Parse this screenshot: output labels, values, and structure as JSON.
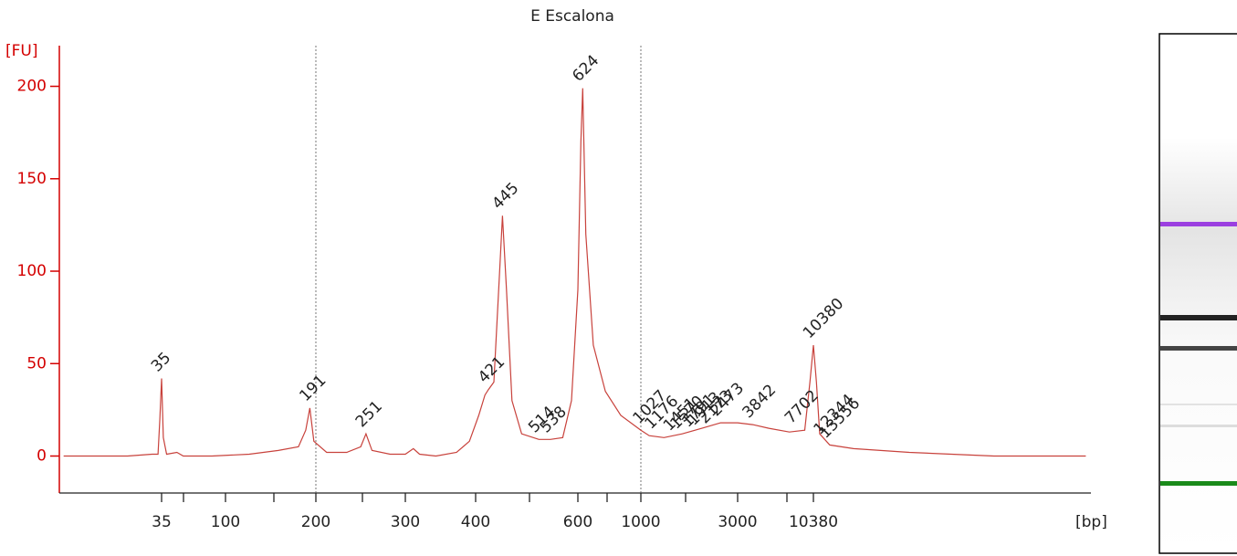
{
  "chart_data": {
    "type": "line",
    "title": "E Escalona",
    "y_label": "[FU]",
    "x_label": "[bp]",
    "axis_color": "#d40000",
    "log_scale": true,
    "ylim": [
      -20,
      222
    ],
    "yticks": [
      0,
      50,
      100,
      150,
      200
    ],
    "xticks": [
      35,
      100,
      200,
      300,
      400,
      600,
      1000,
      3000,
      10380
    ],
    "vlines": [
      200,
      1000
    ],
    "series": [
      {
        "name": "E Escalona",
        "color": "#c8423c",
        "x": [
          7,
          20,
          30,
          33,
          34,
          35,
          36,
          38,
          45,
          50,
          80,
          120,
          150,
          175,
          185,
          191,
          197,
          210,
          230,
          245,
          251,
          258,
          280,
          300,
          310,
          318,
          340,
          370,
          390,
          405,
          415,
          421,
          430,
          440,
          445,
          452,
          462,
          480,
          514,
          538,
          565,
          585,
          600,
          615,
          624,
          640,
          680,
          750,
          850,
          1000,
          1100,
          1300,
          1600,
          2000,
          2473,
          3000,
          3842,
          5000,
          7000,
          9000,
          9800,
          10380,
          10900,
          11500,
          13556,
          20000,
          50000,
          200000,
          900000
        ],
        "values": [
          0,
          0,
          1,
          1,
          20,
          42,
          10,
          1,
          2,
          0,
          0,
          1,
          3,
          5,
          14,
          26,
          8,
          2,
          2,
          5,
          12,
          3,
          1,
          1,
          4,
          1,
          0,
          2,
          8,
          22,
          33,
          36,
          40,
          100,
          130,
          90,
          30,
          12,
          9,
          9,
          10,
          30,
          90,
          170,
          199,
          120,
          60,
          35,
          22,
          14,
          11,
          10,
          12,
          15,
          18,
          18,
          17,
          15,
          13,
          14,
          40,
          60,
          40,
          12,
          6,
          4,
          2,
          0,
          0
        ]
      }
    ],
    "peaks": [
      {
        "x": 35,
        "y": 42,
        "color": "#1a8a1a"
      },
      {
        "x": 191,
        "y": 26,
        "color": "#222222"
      },
      {
        "x": 251,
        "y": 12,
        "color": "#222222"
      },
      {
        "x": 421,
        "y": 36,
        "color": "#222222"
      },
      {
        "x": 445,
        "y": 130,
        "color": "#222222"
      },
      {
        "x": 514,
        "y": 9,
        "color": "#222222"
      },
      {
        "x": 538,
        "y": 9,
        "color": "#222222"
      },
      {
        "x": 624,
        "y": 199,
        "color": "#222222"
      },
      {
        "x": 1027,
        "y": 14,
        "color": "#222222"
      },
      {
        "x": 1176,
        "y": 11,
        "color": "#222222"
      },
      {
        "x": 1451,
        "y": 10,
        "color": "#222222"
      },
      {
        "x": 1570,
        "y": 11,
        "color": "#222222"
      },
      {
        "x": 1791,
        "y": 12,
        "color": "#222222"
      },
      {
        "x": 1913,
        "y": 13,
        "color": "#222222"
      },
      {
        "x": 2173,
        "y": 14,
        "color": "#222222"
      },
      {
        "x": 2473,
        "y": 18,
        "color": "#222222"
      },
      {
        "x": 3842,
        "y": 17,
        "color": "#222222"
      },
      {
        "x": 7702,
        "y": 14,
        "color": "#222222"
      },
      {
        "x": 10380,
        "y": 60,
        "color": "#9b3fe0"
      },
      {
        "x": 12344,
        "y": 8,
        "color": "#222222"
      },
      {
        "x": 13556,
        "y": 6,
        "color": "#222222"
      }
    ]
  }
}
